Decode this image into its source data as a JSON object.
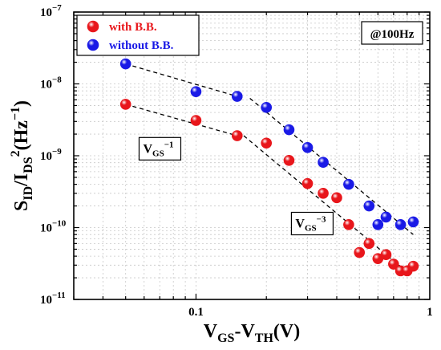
{
  "chart_data": {
    "type": "scatter",
    "xscale": "log",
    "yscale": "log",
    "xlim": [
      0.03,
      1
    ],
    "ylim": [
      1e-11,
      1e-07
    ],
    "grid": true,
    "legend_position": "top-left",
    "x_ticks": [
      {
        "value": 0.1,
        "label": "0.1"
      },
      {
        "value": 1,
        "label": "1"
      }
    ],
    "y_ticks": [
      {
        "value": 1e-07,
        "base": "10",
        "exp": "−7"
      },
      {
        "value": 1e-08,
        "base": "10",
        "exp": "−8"
      },
      {
        "value": 1e-09,
        "base": "10",
        "exp": "−9"
      },
      {
        "value": 1e-10,
        "base": "10",
        "exp": "−10"
      },
      {
        "value": 1e-11,
        "base": "10",
        "exp": "−11"
      }
    ],
    "xlabel": {
      "main": "V",
      "sub1": "GS",
      "mid": "-V",
      "sub2": "TH",
      "tail": "(V)"
    },
    "ylabel": {
      "main": "S",
      "sub1": "ID",
      "mid": "/I",
      "sub2": "DS",
      "sup1": "2",
      "unit": "(Hz",
      "unit_sup": "−1",
      "close": ")"
    },
    "annotation_box": "@100Hz",
    "series": [
      {
        "name": "with B.B.",
        "color": "#e8161b",
        "x": [
          0.05,
          0.1,
          0.15,
          0.2,
          0.25,
          0.3,
          0.35,
          0.4,
          0.45,
          0.5,
          0.55,
          0.6,
          0.65,
          0.7,
          0.75,
          0.8,
          0.85
        ],
        "y": [
          5.2e-09,
          3.1e-09,
          1.9e-09,
          1.5e-09,
          8.6e-10,
          4.1e-10,
          3e-10,
          2.6e-10,
          1.1e-10,
          4.5e-11,
          6e-11,
          3.7e-11,
          4.2e-11,
          3.1e-11,
          2.5e-11,
          2.5e-11,
          2.9e-11
        ]
      },
      {
        "name": "without B.B.",
        "color": "#1a1ae6",
        "x": [
          0.05,
          0.1,
          0.15,
          0.2,
          0.25,
          0.3,
          0.35,
          0.45,
          0.55,
          0.6,
          0.65,
          0.75,
          0.85
        ],
        "y": [
          1.9e-08,
          7.8e-09,
          6.7e-09,
          4.7e-09,
          2.3e-09,
          1.3e-09,
          8.1e-10,
          4e-10,
          2e-10,
          1.1e-10,
          1.4e-10,
          1.1e-10,
          1.2e-10
        ]
      }
    ],
    "fits": [
      {
        "label_main": "V",
        "label_sub": "GS",
        "label_sup": "−1",
        "x": [
          0.05,
          0.15
        ],
        "y": [
          5.2e-09,
          1.9e-09
        ]
      },
      {
        "label_main": "V",
        "label_sub": "GS",
        "label_sup": "−1",
        "x": [
          0.05,
          0.15
        ],
        "y": [
          1.9e-08,
          6.7e-09
        ]
      },
      {
        "label_main": "V",
        "label_sub": "GS",
        "label_sup": "−3",
        "x": [
          0.16,
          0.8
        ],
        "y": [
          1.9e-09,
          2.4e-11
        ]
      },
      {
        "label_main": "V",
        "label_sub": "GS",
        "label_sup": "−3",
        "x": [
          0.17,
          0.85
        ],
        "y": [
          6.3e-09,
          8e-11
        ]
      }
    ],
    "fit_labels": [
      {
        "main": "V",
        "sub": "GS",
        "sup": "−1",
        "x": 0.058,
        "y": 1.1e-09
      },
      {
        "main": "V",
        "sub": "GS",
        "sup": "−3",
        "x": 0.26,
        "y": 1e-10
      }
    ]
  }
}
